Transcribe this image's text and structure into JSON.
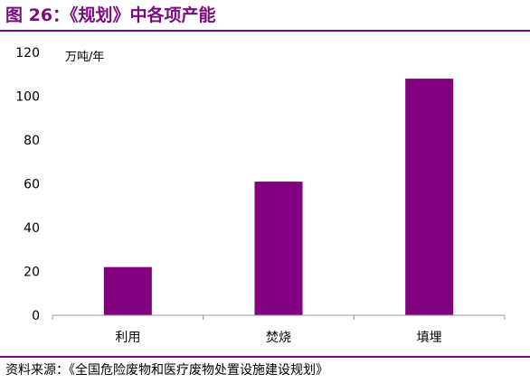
{
  "figure": {
    "title": "图 26：《规划》中各项产能",
    "source": "资料来源：《全国危险废物和医疗废物处置设施建设规划》"
  },
  "chart_data": {
    "type": "bar",
    "title": "",
    "xlabel": "",
    "ylabel": "万吨/年",
    "categories": [
      "利用",
      "焚烧",
      "填埋"
    ],
    "values": [
      22,
      61,
      108
    ],
    "ylim": [
      0,
      120
    ],
    "yticks": [
      0,
      20,
      40,
      60,
      80,
      100,
      120
    ],
    "grid": false,
    "bar_color": "#800080",
    "accent_color": "#7B0A7E"
  }
}
